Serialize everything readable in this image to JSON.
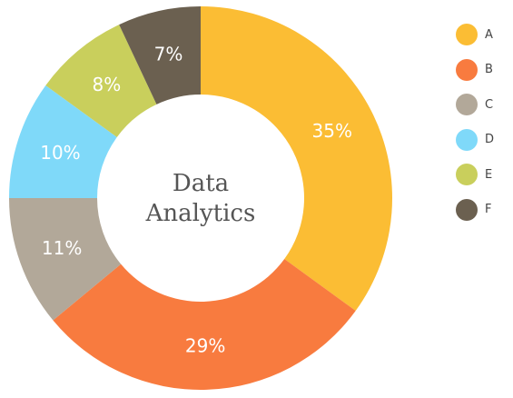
{
  "chart_data": {
    "type": "pie",
    "donut": true,
    "title": "",
    "center_label_lines": [
      "Data",
      "Analytics"
    ],
    "labels": [
      "A",
      "B",
      "C",
      "D",
      "E",
      "F"
    ],
    "values": [
      35,
      29,
      11,
      10,
      8,
      7
    ],
    "value_labels": [
      "35%",
      "29%",
      "11%",
      "10%",
      "8%",
      "7%"
    ],
    "colors": [
      "#FBBD34",
      "#F87B3F",
      "#B2A899",
      "#7FD9F9",
      "#C9CF5C",
      "#6B6050"
    ],
    "legend_position": "right"
  }
}
